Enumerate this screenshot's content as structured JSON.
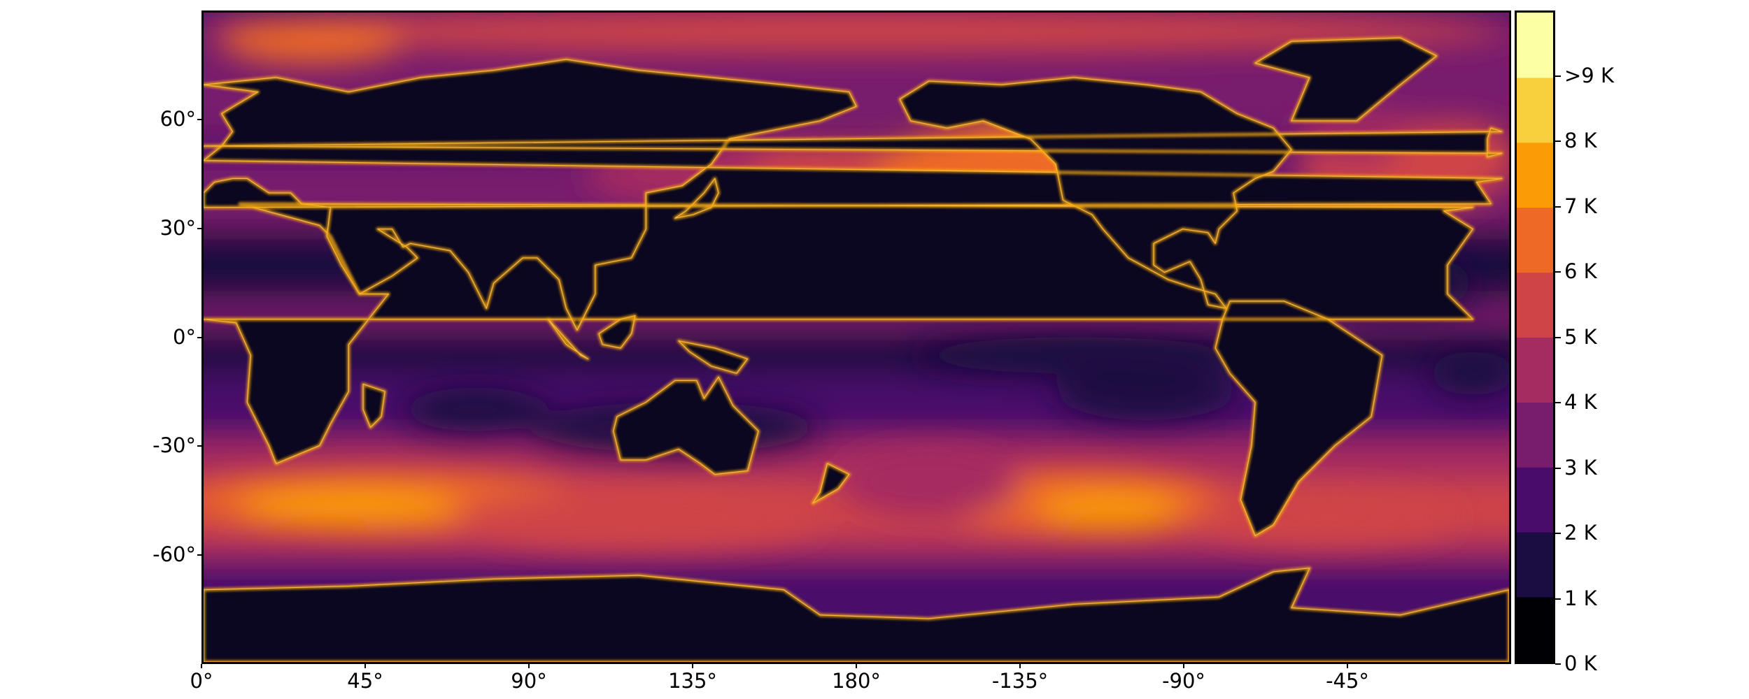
{
  "map": {
    "projection": "plate-carree",
    "central_longitude": 180,
    "lat_ticks": [
      "60°",
      "30°",
      "0°",
      "-30°",
      "-60°"
    ],
    "lat_tick_values": [
      60,
      30,
      0,
      -30,
      -60
    ],
    "lon_ticks": [
      "0°",
      "45°",
      "90°",
      "135°",
      "180°",
      "-135°",
      "-90°",
      "-45°"
    ],
    "lon_tick_values": [
      0,
      45,
      90,
      135,
      180,
      225,
      270,
      315
    ],
    "lat_range": [
      -90,
      90
    ],
    "lon_range": [
      0,
      360
    ],
    "ocean_base_color": "#3a0963",
    "land_color": "#0b0720",
    "coast_glow_color": "#fcae12"
  },
  "colorbar": {
    "labels": [
      "0 K",
      "1 K",
      "2 K",
      "3 K",
      "4 K",
      "5 K",
      "6 K",
      "7 K",
      "8 K",
      ">9 K"
    ],
    "colors": [
      "#000004",
      "#1b0c41",
      "#4a0c6b",
      "#781c6d",
      "#a52c60",
      "#cf4446",
      "#ed6925",
      "#fb9b06",
      "#f7d13d",
      "#fcffa4"
    ],
    "colormap": "inferno",
    "levels": 10
  }
}
